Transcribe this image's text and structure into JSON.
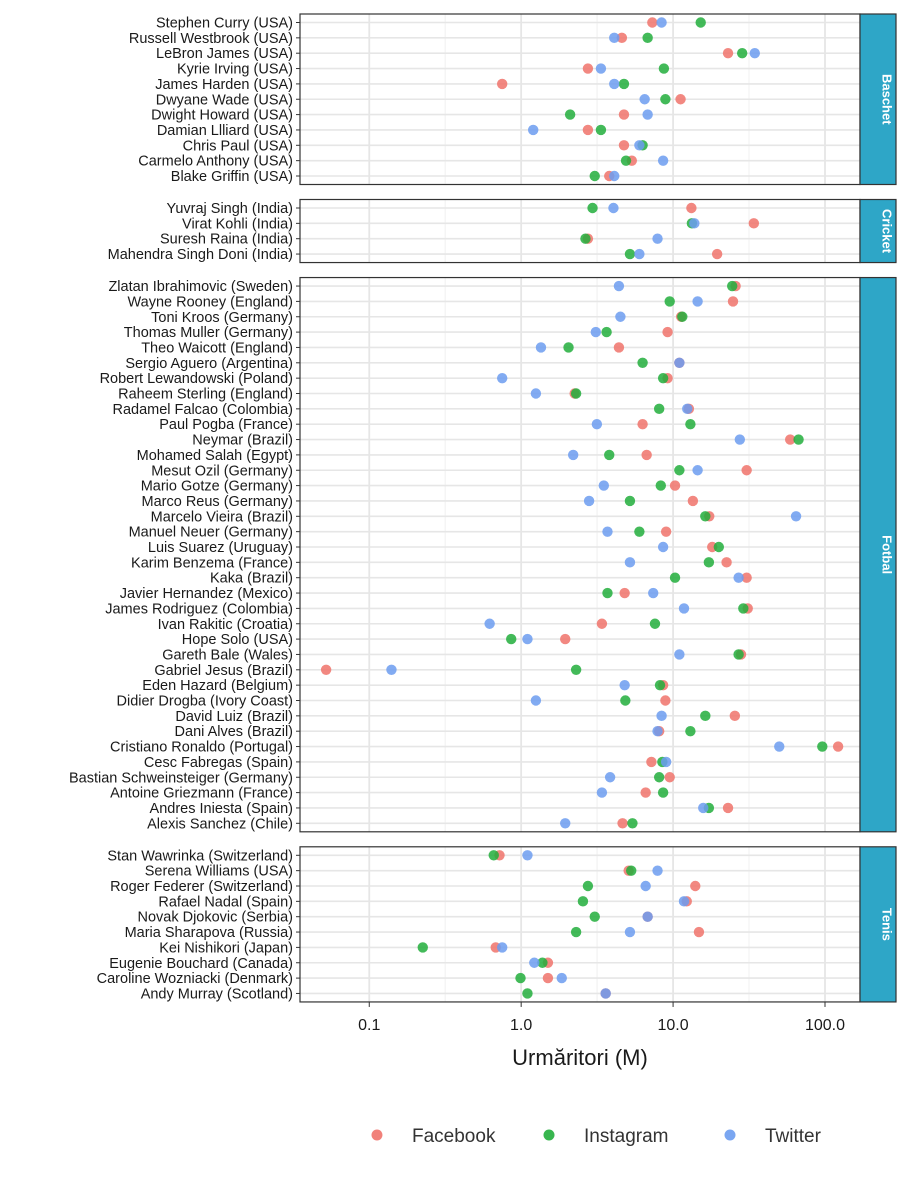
{
  "chart_data": {
    "type": "scatter",
    "xlabel": "Urmăritori (M)",
    "x_scale": "log10",
    "xlim": [
      0.035,
      170
    ],
    "x_ticks": [
      0.1,
      1.0,
      10.0,
      100.0
    ],
    "x_tick_labels": [
      "0.1",
      "1.0",
      "10.0",
      "100.0"
    ],
    "grid": true,
    "legend_position": "bottom",
    "series": [
      {
        "name": "Facebook",
        "color": "#F0736B"
      },
      {
        "name": "Instagram",
        "color": "#22AE3C"
      },
      {
        "name": "Twitter",
        "color": "#6C9CF0"
      }
    ],
    "strip_color": "#2EA6C7",
    "panels": [
      {
        "label": "Baschet",
        "athletes": [
          {
            "name": "Stephen Curry (USA)",
            "values": [
              7.3,
              15.2,
              8.4
            ]
          },
          {
            "name": "Russell Westbrook (USA)",
            "values": [
              4.6,
              6.8,
              4.1
            ]
          },
          {
            "name": "LeBron James (USA)",
            "values": [
              23.0,
              28.5,
              34.5
            ]
          },
          {
            "name": "Kyrie Irving (USA)",
            "values": [
              2.75,
              8.7,
              3.35
            ]
          },
          {
            "name": "James Harden (USA)",
            "values": [
              0.75,
              4.75,
              4.1
            ]
          },
          {
            "name": "Dwyane Wade (USA)",
            "values": [
              11.2,
              8.9,
              6.5
            ]
          },
          {
            "name": "Dwight Howard (USA)",
            "values": [
              4.75,
              2.1,
              6.8
            ]
          },
          {
            "name": "Damian Llliard (USA)",
            "values": [
              2.75,
              3.35,
              1.2
            ]
          },
          {
            "name": "Chris Paul (USA)",
            "values": [
              4.75,
              6.3,
              6.0
            ]
          },
          {
            "name": "Carmelo Anthony (USA)",
            "values": [
              5.35,
              4.9,
              8.6
            ]
          },
          {
            "name": "Blake Griffin (USA)",
            "values": [
              3.8,
              3.05,
              4.1
            ]
          }
        ]
      },
      {
        "label": "Cricket",
        "athletes": [
          {
            "name": "Yuvraj Singh (India)",
            "values": [
              13.2,
              2.95,
              4.05
            ]
          },
          {
            "name": "Virat Kohli (India)",
            "values": [
              34.0,
              13.3,
              13.8
            ]
          },
          {
            "name": "Suresh Raina (India)",
            "values": [
              2.75,
              2.65,
              7.9
            ]
          },
          {
            "name": "Mahendra Singh Doni (India)",
            "values": [
              19.5,
              5.2,
              6.0
            ]
          }
        ]
      },
      {
        "label": "Fotbal",
        "athletes": [
          {
            "name": "Zlatan Ibrahimovic (Sweden)",
            "values": [
              25.8,
              24.5,
              4.4
            ]
          },
          {
            "name": "Wayne Rooney (England)",
            "values": [
              24.8,
              9.5,
              14.5
            ]
          },
          {
            "name": "Toni Kroos (Germany)",
            "values": [
              11.3,
              11.5,
              4.5
            ]
          },
          {
            "name": "Thomas Muller (Germany)",
            "values": [
              9.2,
              3.65,
              3.1
            ]
          },
          {
            "name": "Theo Waicott (England)",
            "values": [
              4.4,
              2.05,
              1.35
            ]
          },
          {
            "name": "Sergio Aguero (Argentina)",
            "values": [
              11.0,
              6.3,
              11.0
            ]
          },
          {
            "name": "Robert Lewandowski (Poland)",
            "values": [
              9.2,
              8.6,
              0.75
            ]
          },
          {
            "name": "Raheem Sterling (England)",
            "values": [
              2.25,
              2.3,
              1.25
            ]
          },
          {
            "name": "Radamel Falcao (Colombia)",
            "values": [
              12.7,
              8.1,
              12.4
            ]
          },
          {
            "name": "Paul Pogba (France)",
            "values": [
              6.3,
              13.0,
              3.15
            ]
          },
          {
            "name": "Neymar (Brazil)",
            "values": [
              59.0,
              67.0,
              27.5
            ]
          },
          {
            "name": "Mohamed Salah (Egypt)",
            "values": [
              6.7,
              3.8,
              2.2
            ]
          },
          {
            "name": "Mesut Ozil (Germany)",
            "values": [
              30.5,
              11.0,
              14.5
            ]
          },
          {
            "name": "Mario Gotze (Germany)",
            "values": [
              10.3,
              8.3,
              3.5
            ]
          },
          {
            "name": "Marco Reus (Germany)",
            "values": [
              13.5,
              5.2,
              2.8
            ]
          },
          {
            "name": "Marcelo Vieira (Brazil)",
            "values": [
              17.3,
              16.3,
              64.5
            ]
          },
          {
            "name": "Manuel Neuer (Germany)",
            "values": [
              9.0,
              6.0,
              3.7
            ]
          },
          {
            "name": "Luis Suarez (Uruguay)",
            "values": [
              18.1,
              20.0,
              8.6
            ]
          },
          {
            "name": "Karim Benzema (France)",
            "values": [
              22.5,
              17.2,
              5.2
            ]
          },
          {
            "name": "Kaka (Brazil)",
            "values": [
              30.5,
              10.3,
              27.0
            ]
          },
          {
            "name": "Javier Hernandez (Mexico)",
            "values": [
              4.8,
              3.7,
              7.4
            ]
          },
          {
            "name": "James Rodriguez (Colombia)",
            "values": [
              31.0,
              29.0,
              11.8
            ]
          },
          {
            "name": "Ivan Rakitic (Croatia)",
            "values": [
              3.4,
              7.6,
              0.62
            ]
          },
          {
            "name": "Hope Solo (USA)",
            "values": [
              1.95,
              0.86,
              1.1
            ]
          },
          {
            "name": "Gareth Bale (Wales)",
            "values": [
              28.0,
              27.0,
              11.0
            ]
          },
          {
            "name": "Gabriel Jesus (Brazil)",
            "values": [
              0.052,
              2.3,
              0.14
            ]
          },
          {
            "name": "Eden Hazard (Belgium)",
            "values": [
              8.6,
              8.2,
              4.8
            ]
          },
          {
            "name": "Didier Drogba (Ivory Coast)",
            "values": [
              8.9,
              4.85,
              1.25
            ]
          },
          {
            "name": "David Luiz (Brazil)",
            "values": [
              25.5,
              16.3,
              8.4
            ]
          },
          {
            "name": "Dani Alves (Brazil)",
            "values": [
              8.1,
              13.0,
              7.9
            ]
          },
          {
            "name": "Cristiano Ronaldo (Portugal)",
            "values": [
              122.0,
              96.0,
              50.0
            ]
          },
          {
            "name": "Cesc Fabregas (Spain)",
            "values": [
              7.2,
              8.5,
              9.0
            ]
          },
          {
            "name": "Bastian Schweinsteiger (Germany)",
            "values": [
              9.5,
              8.1,
              3.85
            ]
          },
          {
            "name": "Antoine Griezmann (France)",
            "values": [
              6.6,
              8.6,
              3.4
            ]
          },
          {
            "name": "Andres Iniesta (Spain)",
            "values": [
              23.0,
              17.2,
              15.8
            ]
          },
          {
            "name": "Alexis Sanchez (Chile)",
            "values": [
              4.65,
              5.4,
              1.95
            ]
          }
        ]
      },
      {
        "label": "Tenis",
        "athletes": [
          {
            "name": "Stan Wawrinka (Switzerland)",
            "values": [
              0.72,
              0.66,
              1.1
            ]
          },
          {
            "name": "Serena Williams (USA)",
            "values": [
              5.1,
              5.3,
              7.9
            ]
          },
          {
            "name": "Roger Federer (Switzerland)",
            "values": [
              14.0,
              2.75,
              6.6
            ]
          },
          {
            "name": "Rafael Nadal (Spain)",
            "values": [
              12.3,
              2.55,
              11.8
            ]
          },
          {
            "name": "Novak Djokovic (Serbia)",
            "values": [
              6.8,
              3.05,
              6.8
            ]
          },
          {
            "name": "Maria Sharapova (Russia)",
            "values": [
              14.8,
              2.3,
              5.2
            ]
          },
          {
            "name": "Kei Nishikori (Japan)",
            "values": [
              0.68,
              0.225,
              0.75
            ]
          },
          {
            "name": "Eugenie Bouchard (Canada)",
            "values": [
              1.5,
              1.38,
              1.22
            ]
          },
          {
            "name": "Caroline Wozniacki (Denmark)",
            "values": [
              1.5,
              0.99,
              1.85
            ]
          },
          {
            "name": "Andy Murray (Scotland)",
            "values": [
              3.6,
              1.1,
              3.6
            ]
          }
        ]
      }
    ]
  }
}
